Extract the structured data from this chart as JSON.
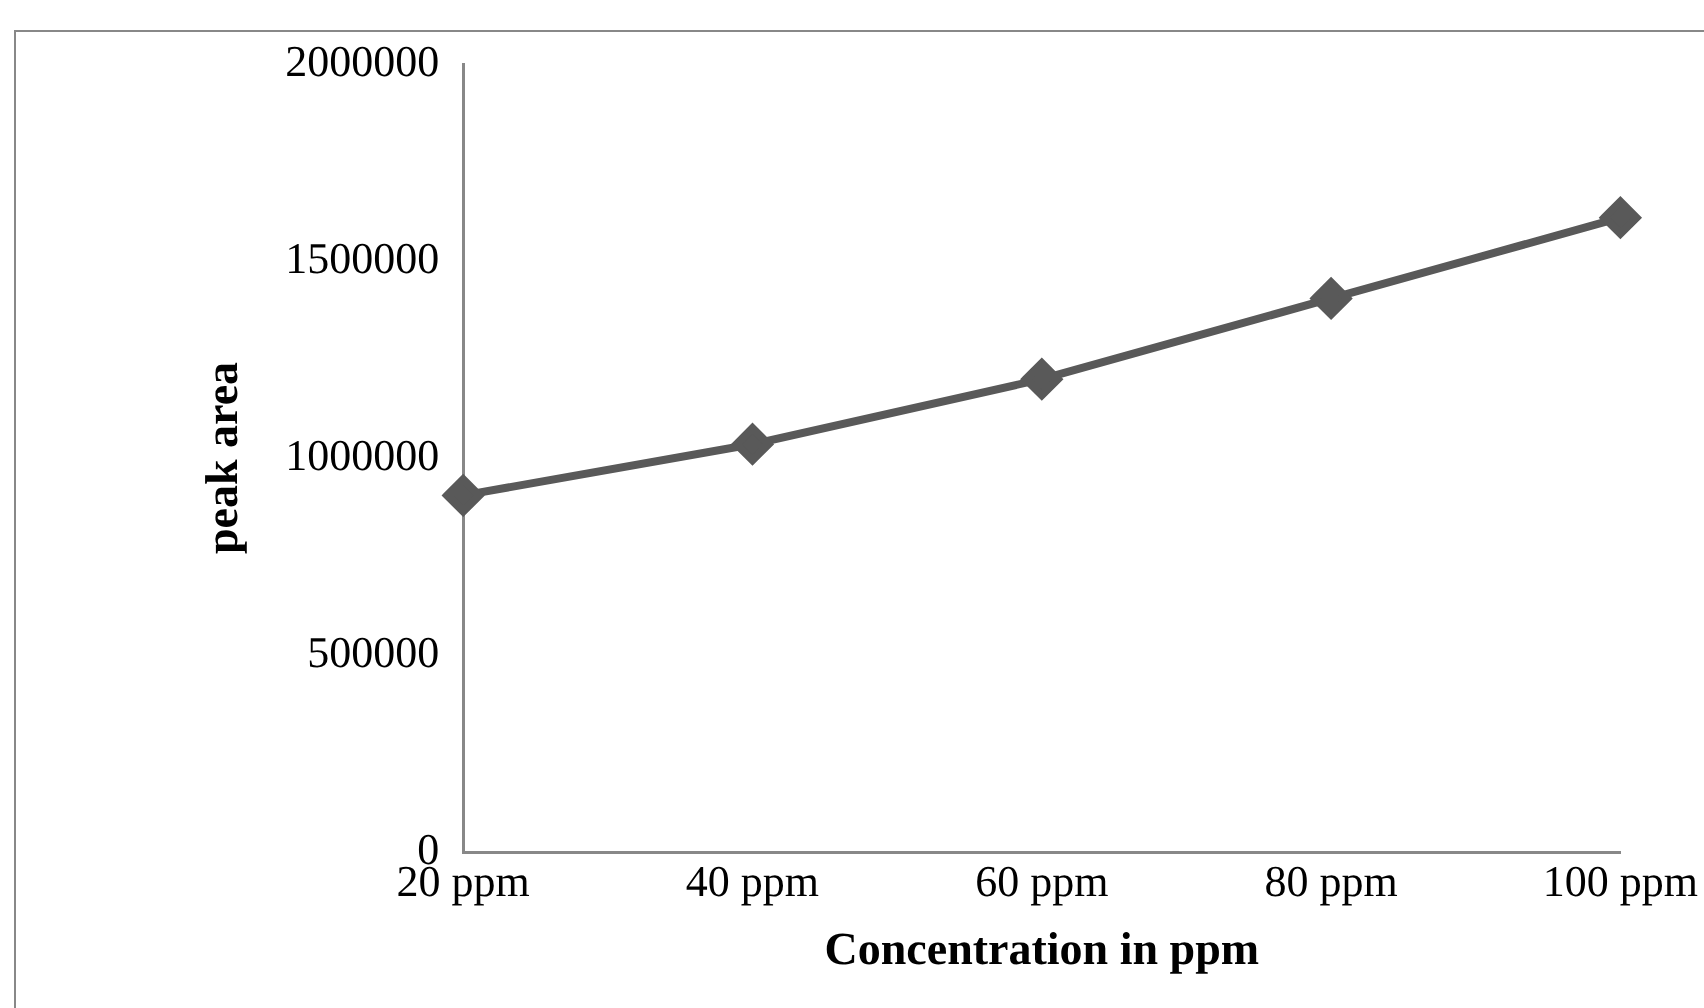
{
  "chart_data": {
    "type": "line",
    "xlabel": "Concentration in ppm",
    "ylabel": "peak area",
    "categories": [
      "20 ppm",
      "40 ppm",
      "60 ppm",
      "80 ppm",
      "100 ppm"
    ],
    "series": [
      {
        "color": "#595959",
        "values": [
          905000,
          1035000,
          1200000,
          1405000,
          1610000
        ]
      }
    ],
    "ylim": [
      0,
      2000000
    ],
    "yticks": [
      0,
      500000,
      1000000,
      1500000,
      2000000
    ],
    "grid": false,
    "legend": false,
    "marker": "diamond",
    "line_style": "solid"
  }
}
